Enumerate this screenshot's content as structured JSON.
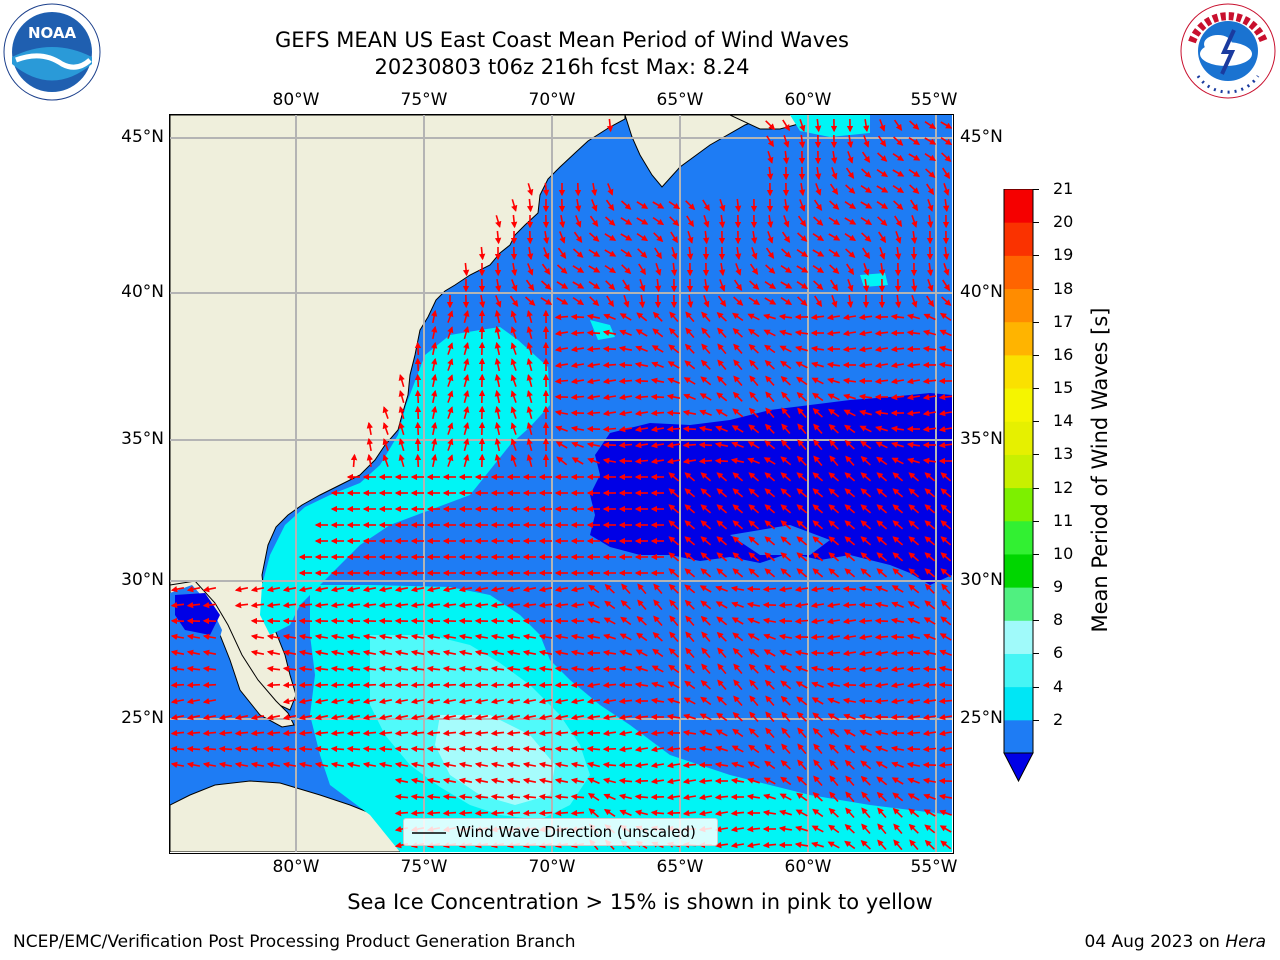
{
  "header": {
    "title_line1": "GEFS MEAN US East Coast Mean Period of Wind Waves",
    "title_line2": "20230803 t06z 216h fcst   Max: 8.24",
    "left_logo_text": "NOAA",
    "right_logo_text": "NATIONAL WEATHER SERVICE"
  },
  "map": {
    "region": "US East Coast / Western North Atlantic",
    "lon_range": [
      "85°W",
      "54°W"
    ],
    "lat_range": [
      "20.5°N",
      "46°N"
    ],
    "lon_ticks": [
      "80°W",
      "75°W",
      "70°W",
      "65°W",
      "60°W",
      "55°W"
    ],
    "lat_ticks": [
      "45°N",
      "40°N",
      "35°N",
      "30°N",
      "25°N"
    ],
    "colors": {
      "land": "#efefdc",
      "ocean_2_4": "#1e7cf4",
      "ocean_below_2": "#0000e6",
      "ocean_4_6": "#00f5f5",
      "ocean_6_8": "#50fafa",
      "ocean_8_9": "#a6fcfc",
      "arrows": "#ff0000",
      "grid": "#b4b4b4"
    },
    "legend_label": "Wind Wave Direction (unscaled)",
    "arrow_field": "red unscaled wind wave direction arrows"
  },
  "colorbar": {
    "label": "Mean Period of Wind Waves [s]",
    "ticks": [
      "2",
      "4",
      "6",
      "8",
      "9",
      "10",
      "11",
      "12",
      "13",
      "14",
      "15",
      "16",
      "17",
      "18",
      "19",
      "20",
      "21"
    ],
    "segment_colors": [
      "#1e7cf4",
      "#00e6f5",
      "#46f5f5",
      "#a0fafa",
      "#50f080",
      "#00d600",
      "#32f032",
      "#7df000",
      "#c8f000",
      "#e6f000",
      "#f5f500",
      "#fae100",
      "#ffb400",
      "#ff8c00",
      "#ff6400",
      "#fa3200",
      "#f50000"
    ],
    "under_color": "#0000e6"
  },
  "footer": {
    "note": "Sea Ice Concentration > 15% is shown in pink to yellow",
    "credit": "NCEP/EMC/Verification Post Processing Product Generation Branch",
    "date": "04 Aug 2023 on",
    "host": "Hera"
  }
}
